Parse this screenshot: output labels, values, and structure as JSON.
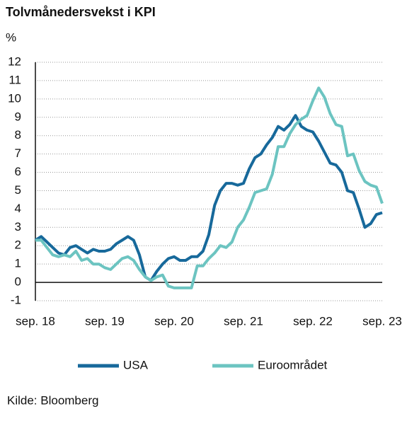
{
  "chart_data": {
    "type": "line",
    "title": "Tolvmånedersvekst i KPI",
    "y_label": "%",
    "source": "Kilde: Bloomberg",
    "categories": [
      "sep. 18",
      null,
      null,
      null,
      null,
      null,
      null,
      null,
      null,
      null,
      null,
      null,
      "sep. 19",
      null,
      null,
      null,
      null,
      null,
      null,
      null,
      null,
      null,
      null,
      null,
      "sep. 20",
      null,
      null,
      null,
      null,
      null,
      null,
      null,
      null,
      null,
      null,
      null,
      "sep. 21",
      null,
      null,
      null,
      null,
      null,
      null,
      null,
      null,
      null,
      null,
      null,
      "sep. 22",
      null,
      null,
      null,
      null,
      null,
      null,
      null,
      null,
      null,
      null,
      null,
      "sep. 23"
    ],
    "series": [
      {
        "name": "USA",
        "color": "#17699b",
        "values": [
          2.3,
          2.5,
          2.2,
          1.9,
          1.6,
          1.5,
          1.9,
          2.0,
          1.8,
          1.6,
          1.8,
          1.7,
          1.7,
          1.8,
          2.1,
          2.3,
          2.5,
          2.3,
          1.5,
          0.3,
          0.1,
          0.6,
          1.0,
          1.3,
          1.4,
          1.2,
          1.2,
          1.4,
          1.4,
          1.7,
          2.6,
          4.2,
          5.0,
          5.4,
          5.4,
          5.3,
          5.4,
          6.2,
          6.8,
          7.0,
          7.5,
          7.9,
          8.5,
          8.3,
          8.6,
          9.1,
          8.5,
          8.3,
          8.2,
          7.7,
          7.1,
          6.5,
          6.4,
          6.0,
          5.0,
          4.9,
          4.0,
          3.0,
          3.2,
          3.7,
          3.8
        ]
      },
      {
        "name": "Euroområdet",
        "color": "#6cc4c1",
        "values": [
          2.3,
          2.3,
          1.9,
          1.5,
          1.4,
          1.5,
          1.4,
          1.7,
          1.2,
          1.3,
          1.0,
          1.0,
          0.8,
          0.7,
          1.0,
          1.3,
          1.4,
          1.2,
          0.7,
          0.3,
          0.1,
          0.3,
          0.4,
          -0.2,
          -0.3,
          -0.3,
          -0.3,
          -0.3,
          0.9,
          0.9,
          1.3,
          1.6,
          2.0,
          1.9,
          2.2,
          3.0,
          3.4,
          4.1,
          4.9,
          5.0,
          5.1,
          5.9,
          7.4,
          7.4,
          8.1,
          8.6,
          8.9,
          9.1,
          9.9,
          10.6,
          10.1,
          9.2,
          8.6,
          8.5,
          6.9,
          7.0,
          6.1,
          5.5,
          5.3,
          5.2,
          4.3
        ]
      }
    ],
    "ylim": [
      -1,
      12
    ],
    "yticks": [
      -1,
      0,
      1,
      2,
      3,
      4,
      5,
      6,
      7,
      8,
      9,
      10,
      11,
      12
    ],
    "grid": true,
    "legend": "bottom"
  }
}
